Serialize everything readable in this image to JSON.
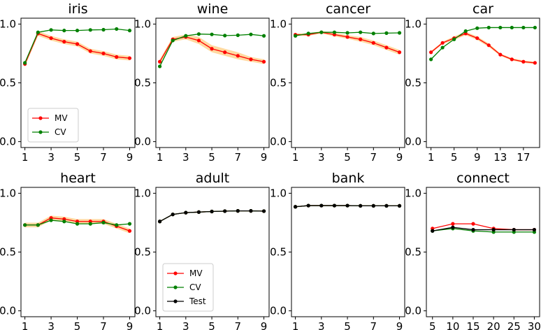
{
  "chart_data": [
    {
      "type": "line",
      "title": "iris",
      "x": [
        1,
        2,
        3,
        4,
        5,
        6,
        7,
        8,
        9
      ],
      "ylim": [
        -0.05,
        1.05
      ],
      "xlim": [
        0.7,
        9.4
      ],
      "xticks": [
        1,
        3,
        5,
        7,
        9
      ],
      "yticks": [
        0.0,
        0.5,
        1.0
      ],
      "legend": "bottom-left",
      "series": [
        {
          "name": "MV",
          "color": "#ff0000",
          "values": [
            0.66,
            0.92,
            0.88,
            0.85,
            0.83,
            0.77,
            0.75,
            0.72,
            0.71
          ],
          "band": [
            0.02,
            0.02,
            0.02,
            0.02,
            0.02,
            0.02,
            0.02,
            0.02,
            0.02
          ]
        },
        {
          "name": "CV",
          "color": "#008000",
          "values": [
            0.67,
            0.93,
            0.95,
            0.945,
            0.945,
            0.95,
            0.952,
            0.958,
            0.945
          ]
        }
      ]
    },
    {
      "type": "line",
      "title": "wine",
      "x": [
        1,
        2,
        3,
        4,
        5,
        6,
        7,
        8,
        9
      ],
      "ylim": [
        -0.05,
        1.05
      ],
      "xlim": [
        0.7,
        9.4
      ],
      "xticks": [
        1,
        3,
        5,
        7,
        9
      ],
      "yticks": [
        0.0,
        0.5,
        1.0
      ],
      "series": [
        {
          "name": "MV",
          "color": "#ff0000",
          "values": [
            0.68,
            0.87,
            0.89,
            0.86,
            0.79,
            0.76,
            0.73,
            0.7,
            0.68
          ],
          "band": [
            0.02,
            0.02,
            0.02,
            0.03,
            0.03,
            0.03,
            0.03,
            0.02,
            0.02
          ]
        },
        {
          "name": "CV",
          "color": "#008000",
          "values": [
            0.64,
            0.86,
            0.9,
            0.915,
            0.912,
            0.902,
            0.905,
            0.912,
            0.9
          ]
        }
      ]
    },
    {
      "type": "line",
      "title": "cancer",
      "x": [
        1,
        2,
        3,
        4,
        5,
        6,
        7,
        8,
        9
      ],
      "ylim": [
        -0.05,
        1.05
      ],
      "xlim": [
        0.7,
        9.4
      ],
      "xticks": [
        1,
        3,
        5,
        7,
        9
      ],
      "yticks": [
        0.0,
        0.5,
        1.0
      ],
      "series": [
        {
          "name": "MV",
          "color": "#ff0000",
          "values": [
            0.91,
            0.91,
            0.93,
            0.91,
            0.89,
            0.87,
            0.84,
            0.8,
            0.76
          ],
          "band": [
            0.01,
            0.01,
            0.01,
            0.015,
            0.015,
            0.02,
            0.02,
            0.02,
            0.02
          ]
        },
        {
          "name": "CV",
          "color": "#008000",
          "values": [
            0.9,
            0.92,
            0.93,
            0.93,
            0.925,
            0.93,
            0.92,
            0.923,
            0.925
          ]
        }
      ]
    },
    {
      "type": "line",
      "title": "car",
      "x": [
        1,
        3,
        5,
        7,
        9,
        11,
        13,
        15,
        17,
        19
      ],
      "ylim": [
        -0.05,
        1.05
      ],
      "xlim": [
        0.2,
        19.8
      ],
      "xticks": [
        1,
        5,
        9,
        13,
        17
      ],
      "yticks": [
        0.0,
        0.5,
        1.0
      ],
      "series": [
        {
          "name": "MV",
          "color": "#ff0000",
          "values": [
            0.76,
            0.84,
            0.88,
            0.92,
            0.88,
            0.82,
            0.74,
            0.7,
            0.68,
            0.67
          ],
          "band": [
            0.01,
            0.01,
            0.015,
            0.015,
            0.015,
            0.015,
            0.01,
            0.01,
            0.01,
            0.01
          ]
        },
        {
          "name": "CV",
          "color": "#008000",
          "values": [
            0.7,
            0.8,
            0.87,
            0.94,
            0.965,
            0.97,
            0.97,
            0.97,
            0.97,
            0.97
          ]
        }
      ]
    },
    {
      "type": "line",
      "title": "heart",
      "x": [
        1,
        2,
        3,
        4,
        5,
        6,
        7,
        8,
        9
      ],
      "ylim": [
        -0.05,
        1.05
      ],
      "xlim": [
        0.7,
        9.4
      ],
      "xticks": [
        1,
        3,
        5,
        7,
        9
      ],
      "yticks": [
        0.0,
        0.5,
        1.0
      ],
      "series": [
        {
          "name": "MV",
          "color": "#ff0000",
          "values": [
            0.73,
            0.73,
            0.79,
            0.78,
            0.76,
            0.76,
            0.76,
            0.72,
            0.68
          ],
          "band": [
            0.02,
            0.02,
            0.02,
            0.02,
            0.02,
            0.02,
            0.02,
            0.02,
            0.02
          ]
        },
        {
          "name": "CV",
          "color": "#008000",
          "values": [
            0.73,
            0.73,
            0.77,
            0.76,
            0.74,
            0.74,
            0.75,
            0.73,
            0.74
          ]
        }
      ]
    },
    {
      "type": "line",
      "title": "adult",
      "x": [
        1,
        2,
        3,
        4,
        5,
        6,
        7,
        8,
        9
      ],
      "ylim": [
        -0.05,
        1.05
      ],
      "xlim": [
        0.7,
        9.4
      ],
      "xticks": [
        1,
        3,
        5,
        7,
        9
      ],
      "yticks": [
        0.0,
        0.5,
        1.0
      ],
      "legend": "bottom-left",
      "series": [
        {
          "name": "MV",
          "color": "#ff0000",
          "values": [
            0.76,
            0.82,
            0.835,
            0.84,
            0.845,
            0.848,
            0.85,
            0.85,
            0.848
          ]
        },
        {
          "name": "CV",
          "color": "#008000",
          "values": [
            0.76,
            0.82,
            0.835,
            0.84,
            0.845,
            0.848,
            0.85,
            0.85,
            0.848
          ]
        },
        {
          "name": "Test",
          "color": "#000000",
          "values": [
            0.76,
            0.82,
            0.835,
            0.84,
            0.845,
            0.848,
            0.85,
            0.85,
            0.848
          ]
        }
      ]
    },
    {
      "type": "line",
      "title": "bank",
      "x": [
        1,
        2,
        3,
        4,
        5,
        6,
        7,
        8,
        9
      ],
      "ylim": [
        -0.05,
        1.05
      ],
      "xlim": [
        0.7,
        9.4
      ],
      "xticks": [
        1,
        3,
        5,
        7,
        9
      ],
      "yticks": [
        0.0,
        0.5,
        1.0
      ],
      "series": [
        {
          "name": "MV",
          "color": "#ff0000",
          "values": [
            0.885,
            0.895,
            0.895,
            0.895,
            0.895,
            0.893,
            0.893,
            0.893,
            0.893
          ]
        },
        {
          "name": "CV",
          "color": "#008000",
          "values": [
            0.885,
            0.895,
            0.895,
            0.895,
            0.895,
            0.893,
            0.893,
            0.893,
            0.893
          ]
        },
        {
          "name": "Test",
          "color": "#000000",
          "values": [
            0.885,
            0.895,
            0.895,
            0.895,
            0.895,
            0.893,
            0.893,
            0.893,
            0.893
          ]
        }
      ]
    },
    {
      "type": "line",
      "title": "connect",
      "x": [
        5,
        10,
        15,
        20,
        25,
        30
      ],
      "ylim": [
        -0.05,
        1.05
      ],
      "xlim": [
        3.5,
        31.3
      ],
      "xticks": [
        5,
        10,
        15,
        20,
        25,
        30
      ],
      "yticks": [
        0.0,
        0.5,
        1.0
      ],
      "series": [
        {
          "name": "MV",
          "color": "#ff0000",
          "values": [
            0.7,
            0.74,
            0.74,
            0.7,
            0.69,
            0.69
          ]
        },
        {
          "name": "CV",
          "color": "#008000",
          "values": [
            0.68,
            0.7,
            0.68,
            0.67,
            0.67,
            0.67
          ]
        },
        {
          "name": "Test",
          "color": "#000000",
          "values": [
            0.68,
            0.71,
            0.69,
            0.69,
            0.69,
            0.69
          ]
        }
      ]
    }
  ]
}
